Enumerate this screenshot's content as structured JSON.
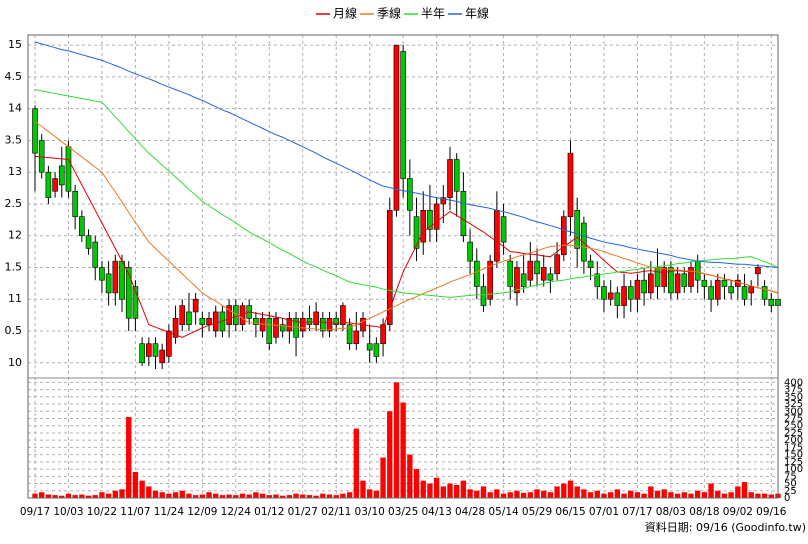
{
  "chart_data": {
    "type": "candlestick",
    "categories": [
      "09/17",
      null,
      null,
      null,
      null,
      "10/03",
      null,
      null,
      null,
      null,
      "10/22",
      null,
      null,
      null,
      null,
      "11/07",
      null,
      null,
      null,
      null,
      "11/24",
      null,
      null,
      null,
      null,
      "12/09",
      null,
      null,
      null,
      null,
      "12/24",
      null,
      null,
      null,
      null,
      "01/12",
      null,
      null,
      null,
      null,
      "01/27",
      null,
      null,
      null,
      null,
      "02/11",
      null,
      null,
      null,
      null,
      "03/10",
      null,
      null,
      null,
      null,
      "03/25",
      null,
      null,
      null,
      null,
      "04/13",
      null,
      null,
      null,
      null,
      "04/28",
      null,
      null,
      null,
      null,
      "05/14",
      null,
      null,
      null,
      null,
      "05/29",
      null,
      null,
      null,
      null,
      "06/15",
      null,
      null,
      null,
      null,
      "07/01",
      null,
      null,
      null,
      null,
      "07/17",
      null,
      null,
      null,
      null,
      "08/03",
      null,
      null,
      null,
      null,
      "08/18",
      null,
      null,
      null,
      null,
      "09/02",
      null,
      null,
      null,
      null,
      "09/16",
      null
    ],
    "open": [
      14.0,
      13.5,
      13.0,
      12.7,
      13.1,
      13.4,
      12.7,
      12.3,
      12.0,
      11.9,
      11.5,
      11.4,
      11.1,
      11.6,
      11.5,
      11.2,
      10.3,
      10.1,
      10.3,
      10.0,
      10.1,
      10.4,
      10.6,
      10.8,
      10.8,
      10.7,
      10.6,
      10.5,
      10.8,
      10.6,
      10.9,
      10.6,
      10.9,
      10.7,
      10.5,
      10.7,
      10.4,
      10.6,
      10.5,
      10.7,
      10.5,
      10.7,
      10.6,
      10.7,
      10.5,
      10.7,
      10.6,
      10.6,
      10.3,
      10.5,
      10.3,
      10.3,
      10.3,
      10.6,
      12.4,
      14.9,
      12.9,
      12.3,
      11.9,
      12.4,
      12.1,
      12.5,
      12.6,
      13.2,
      12.7,
      11.9,
      11.6,
      11.2,
      11.0,
      11.6,
      12.3,
      11.6,
      11.1,
      11.4,
      11.3,
      11.6,
      11.3,
      11.4,
      11.4,
      11.7,
      12.3,
      12.4,
      12.2,
      11.6,
      11.4,
      11.2,
      11.0,
      11.1,
      10.9,
      11.2,
      11.0,
      11.3,
      11.1,
      11.5,
      11.2,
      11.5,
      11.1,
      11.4,
      11.2,
      11.6,
      11.3,
      11.2,
      11.0,
      11.3,
      11.2,
      11.2,
      11.2,
      11.1,
      11.4,
      11.2,
      11.0,
      11.0
    ],
    "high": [
      14.05,
      13.6,
      13.1,
      13.0,
      13.4,
      13.5,
      12.8,
      12.4,
      12.1,
      12.0,
      11.6,
      11.6,
      11.7,
      11.7,
      11.6,
      11.3,
      10.4,
      10.4,
      10.4,
      10.3,
      10.6,
      10.9,
      11.0,
      11.1,
      11.1,
      10.8,
      10.8,
      10.9,
      10.9,
      11.0,
      11.0,
      10.95,
      11.0,
      10.8,
      10.8,
      10.8,
      10.8,
      10.7,
      10.8,
      10.8,
      10.8,
      10.9,
      10.95,
      10.8,
      10.8,
      10.8,
      10.95,
      10.7,
      10.8,
      10.8,
      10.6,
      10.4,
      10.7,
      12.6,
      15.0,
      15.0,
      13.2,
      12.6,
      12.7,
      12.8,
      12.6,
      12.8,
      13.4,
      13.3,
      13.0,
      12.1,
      11.8,
      11.4,
      11.7,
      12.7,
      12.5,
      11.7,
      11.6,
      11.7,
      11.9,
      11.8,
      11.7,
      11.5,
      11.9,
      12.4,
      13.5,
      12.6,
      12.3,
      11.7,
      11.6,
      11.3,
      11.3,
      11.2,
      11.4,
      11.3,
      11.4,
      11.5,
      11.6,
      11.8,
      11.6,
      11.6,
      11.5,
      11.5,
      11.6,
      11.7,
      11.4,
      11.3,
      11.4,
      11.4,
      11.3,
      11.4,
      11.4,
      11.3,
      11.55,
      11.3,
      11.1,
      11.05
    ],
    "low": [
      12.7,
      12.9,
      12.5,
      12.6,
      12.6,
      12.6,
      12.1,
      11.9,
      11.7,
      11.3,
      11.1,
      10.9,
      10.9,
      10.8,
      10.5,
      10.5,
      9.95,
      9.95,
      9.9,
      9.9,
      10.0,
      10.3,
      10.5,
      10.5,
      10.6,
      10.4,
      10.5,
      10.4,
      10.4,
      10.4,
      10.5,
      10.5,
      10.6,
      10.4,
      10.4,
      10.2,
      10.3,
      10.4,
      10.3,
      10.1,
      10.4,
      10.5,
      10.5,
      10.4,
      10.4,
      10.5,
      10.5,
      10.2,
      10.2,
      10.4,
      10.0,
      10.0,
      10.1,
      10.5,
      12.3,
      12.6,
      12.0,
      11.6,
      11.7,
      11.9,
      11.9,
      12.2,
      12.4,
      12.3,
      11.9,
      11.4,
      11.0,
      10.8,
      10.9,
      11.5,
      11.7,
      11.0,
      10.9,
      11.1,
      11.2,
      11.2,
      11.2,
      11.1,
      11.3,
      11.6,
      12.0,
      11.5,
      11.4,
      11.3,
      11.0,
      10.8,
      10.9,
      10.7,
      10.7,
      10.8,
      10.8,
      10.9,
      11.0,
      11.0,
      11.1,
      11.0,
      11.0,
      11.1,
      11.1,
      11.1,
      11.0,
      10.8,
      10.9,
      11.0,
      11.0,
      11.0,
      10.9,
      10.9,
      11.2,
      10.9,
      10.8,
      10.85
    ],
    "close": [
      13.3,
      13.0,
      12.6,
      12.9,
      12.8,
      12.7,
      12.3,
      12.0,
      11.8,
      11.5,
      11.3,
      11.1,
      11.6,
      11.0,
      10.7,
      10.7,
      10.0,
      10.3,
      10.1,
      10.2,
      10.5,
      10.7,
      10.9,
      10.6,
      11.0,
      10.6,
      10.7,
      10.8,
      10.5,
      10.9,
      10.6,
      10.9,
      10.7,
      10.6,
      10.7,
      10.3,
      10.7,
      10.5,
      10.7,
      10.4,
      10.7,
      10.6,
      10.8,
      10.5,
      10.7,
      10.6,
      10.9,
      10.3,
      10.5,
      10.7,
      10.2,
      10.1,
      10.6,
      12.4,
      15.0,
      12.9,
      12.4,
      11.8,
      12.4,
      12.1,
      12.5,
      12.6,
      13.2,
      12.7,
      12.0,
      11.6,
      11.2,
      10.9,
      11.6,
      12.4,
      11.9,
      11.2,
      11.5,
      11.2,
      11.6,
      11.4,
      11.5,
      11.3,
      11.7,
      12.3,
      13.3,
      11.8,
      11.6,
      11.5,
      11.2,
      11.0,
      11.1,
      10.9,
      11.2,
      11.0,
      11.3,
      11.1,
      11.4,
      11.2,
      11.5,
      11.1,
      11.4,
      11.2,
      11.5,
      11.3,
      11.2,
      11.0,
      11.3,
      11.2,
      11.1,
      11.3,
      11.0,
      11.2,
      11.5,
      11.0,
      10.9,
      10.9
    ],
    "up_color": "#ff0000",
    "down_color": "#00c800",
    "ylim": [
      9.76,
      15.16
    ],
    "yticks": [
      10,
      {
        "value": 10.5,
        "label": "0.5"
      },
      11,
      {
        "value": 11.5,
        "label": "1.5"
      },
      12,
      {
        "value": 12.5,
        "label": "2.5"
      },
      13,
      {
        "value": 13.5,
        "label": "3.5"
      },
      14,
      {
        "value": 14.5,
        "label": "4.5"
      },
      15
    ],
    "grid": true,
    "lines": [
      {
        "name": "月線",
        "color": "#e00000",
        "values": [
          13.25,
          13.24,
          13.23,
          13.22,
          13.21,
          13.2,
          13.0,
          12.8,
          12.6,
          12.4,
          12.2,
          12.0,
          11.8,
          11.6,
          11.4,
          11.13,
          10.87,
          10.6,
          10.56,
          10.52,
          10.48,
          10.44,
          10.4,
          10.45,
          10.5,
          10.55,
          10.59,
          10.62,
          10.66,
          10.69,
          10.73,
          10.76,
          10.8,
          10.78,
          10.76,
          10.74,
          10.72,
          10.7,
          10.67,
          10.65,
          10.63,
          10.64,
          10.65,
          10.64,
          10.63,
          10.62,
          10.63,
          10.63,
          10.61,
          10.6,
          10.58,
          10.57,
          10.55,
          10.84,
          11.14,
          11.43,
          11.64,
          11.85,
          12.06,
          12.14,
          12.22,
          12.3,
          12.38,
          12.32,
          12.25,
          12.19,
          12.12,
          12.06,
          11.98,
          11.91,
          11.83,
          11.75,
          11.74,
          11.72,
          11.71,
          11.7,
          11.68,
          11.67,
          11.75,
          11.83,
          11.9,
          11.98,
          11.89,
          11.8,
          11.71,
          11.61,
          11.52,
          11.43,
          11.42,
          11.41,
          11.42,
          11.44,
          11.45,
          11.43,
          11.42,
          11.44,
          11.45,
          11.44,
          11.43,
          11.43,
          11.4,
          11.38,
          11.35,
          11.32,
          11.3,
          11.27,
          11.24,
          11.21,
          11.18,
          11.16,
          11.13,
          11.1
        ]
      },
      {
        "name": "季線",
        "color": "#f07820",
        "values": [
          13.8,
          13.72,
          13.64,
          13.56,
          13.48,
          13.4,
          13.32,
          13.24,
          13.16,
          13.08,
          13.0,
          12.84,
          12.69,
          12.53,
          12.37,
          12.21,
          12.06,
          11.9,
          11.8,
          11.7,
          11.6,
          11.5,
          11.4,
          11.3,
          11.2,
          11.1,
          11.03,
          10.97,
          10.9,
          10.83,
          10.77,
          10.7,
          10.63,
          10.62,
          10.61,
          10.6,
          10.59,
          10.58,
          10.57,
          10.56,
          10.55,
          10.54,
          10.53,
          10.52,
          10.52,
          10.53,
          10.54,
          10.55,
          10.6,
          10.65,
          10.7,
          10.75,
          10.8,
          10.85,
          10.9,
          10.95,
          11.0,
          11.04,
          11.09,
          11.13,
          11.18,
          11.22,
          11.27,
          11.31,
          11.35,
          11.39,
          11.43,
          11.48,
          11.52,
          11.56,
          11.6,
          11.63,
          11.67,
          11.7,
          11.73,
          11.76,
          11.8,
          11.83,
          11.84,
          11.85,
          11.85,
          11.84,
          11.82,
          11.8,
          11.78,
          11.75,
          11.71,
          11.68,
          11.64,
          11.61,
          11.57,
          11.54,
          11.5,
          11.49,
          11.48,
          11.47,
          11.46,
          11.45,
          11.44,
          11.43,
          11.4,
          11.38,
          11.35,
          11.32,
          11.29,
          11.27,
          11.24,
          11.21,
          11.18,
          11.16,
          11.13,
          11.1
        ]
      },
      {
        "name": "半年",
        "color": "#33dd33",
        "values": [
          14.3,
          14.28,
          14.26,
          14.24,
          14.22,
          14.2,
          14.18,
          14.16,
          14.14,
          14.12,
          14.1,
          13.99,
          13.87,
          13.76,
          13.64,
          13.53,
          13.41,
          13.3,
          13.21,
          13.11,
          13.02,
          12.92,
          12.83,
          12.73,
          12.64,
          12.54,
          12.47,
          12.4,
          12.33,
          12.27,
          12.2,
          12.13,
          12.06,
          12.0,
          11.95,
          11.89,
          11.83,
          11.77,
          11.72,
          11.66,
          11.6,
          11.55,
          11.51,
          11.46,
          11.41,
          11.37,
          11.32,
          11.27,
          11.25,
          11.23,
          11.21,
          11.19,
          11.16,
          11.14,
          11.12,
          11.1,
          11.09,
          11.08,
          11.07,
          11.06,
          11.05,
          11.04,
          11.03,
          11.04,
          11.05,
          11.06,
          11.07,
          11.07,
          11.08,
          11.09,
          11.1,
          11.12,
          11.15,
          11.17,
          11.2,
          11.22,
          11.25,
          11.27,
          11.29,
          11.3,
          11.32,
          11.34,
          11.35,
          11.37,
          11.38,
          11.4,
          11.41,
          11.43,
          11.44,
          11.46,
          11.47,
          11.49,
          11.5,
          11.51,
          11.53,
          11.54,
          11.56,
          11.57,
          11.59,
          11.6,
          11.61,
          11.62,
          11.63,
          11.64,
          11.64,
          11.65,
          11.66,
          11.67,
          11.63,
          11.59,
          11.55,
          11.5
        ]
      },
      {
        "name": "年線",
        "color": "#2266dd",
        "values": [
          15.05,
          15.02,
          14.99,
          14.96,
          14.93,
          14.91,
          14.88,
          14.85,
          14.82,
          14.79,
          14.76,
          14.72,
          14.68,
          14.64,
          14.59,
          14.55,
          14.51,
          14.47,
          14.43,
          14.38,
          14.34,
          14.3,
          14.26,
          14.22,
          14.17,
          14.13,
          14.08,
          14.03,
          13.98,
          13.94,
          13.89,
          13.84,
          13.79,
          13.74,
          13.69,
          13.64,
          13.59,
          13.55,
          13.5,
          13.45,
          13.4,
          13.35,
          13.3,
          13.24,
          13.19,
          13.14,
          13.09,
          13.04,
          12.99,
          12.93,
          12.88,
          12.83,
          12.78,
          12.76,
          12.73,
          12.71,
          12.69,
          12.67,
          12.65,
          12.62,
          12.6,
          12.58,
          12.56,
          12.54,
          12.51,
          12.49,
          12.47,
          12.45,
          12.43,
          12.4,
          12.38,
          12.35,
          12.32,
          12.29,
          12.25,
          12.22,
          12.19,
          12.16,
          12.13,
          12.09,
          12.06,
          12.03,
          12.0,
          11.96,
          11.93,
          11.9,
          11.88,
          11.86,
          11.84,
          11.81,
          11.79,
          11.77,
          11.75,
          11.73,
          11.71,
          11.69,
          11.66,
          11.64,
          11.62,
          11.6,
          11.59,
          11.58,
          11.58,
          11.57,
          11.56,
          11.55,
          11.55,
          11.54,
          11.53,
          11.52,
          11.51,
          11.5
        ]
      }
    ],
    "volume": {
      "color": "#ff0000",
      "values": [
        15,
        20,
        12,
        10,
        8,
        15,
        10,
        12,
        8,
        10,
        20,
        15,
        25,
        30,
        280,
        90,
        60,
        40,
        25,
        20,
        15,
        20,
        25,
        15,
        10,
        12,
        20,
        15,
        10,
        12,
        10,
        15,
        12,
        20,
        15,
        10,
        12,
        8,
        10,
        15,
        12,
        10,
        8,
        15,
        12,
        10,
        15,
        20,
        240,
        60,
        30,
        25,
        140,
        300,
        400,
        330,
        150,
        100,
        60,
        50,
        70,
        40,
        50,
        45,
        60,
        30,
        25,
        40,
        20,
        30,
        15,
        20,
        25,
        18,
        20,
        30,
        25,
        20,
        40,
        50,
        60,
        40,
        30,
        20,
        25,
        15,
        20,
        30,
        15,
        25,
        20,
        15,
        40,
        25,
        30,
        20,
        15,
        20,
        15,
        25,
        20,
        50,
        25,
        15,
        20,
        40,
        55,
        20,
        15,
        15,
        12,
        15
      ],
      "ylim": [
        0,
        415
      ],
      "yticks": [
        0,
        25,
        50,
        75,
        100,
        125,
        150,
        175,
        200,
        225,
        250,
        275,
        300,
        325,
        350,
        375,
        400
      ]
    },
    "footer": "資料日期: 09/16  (Goodinfo.tw)"
  }
}
